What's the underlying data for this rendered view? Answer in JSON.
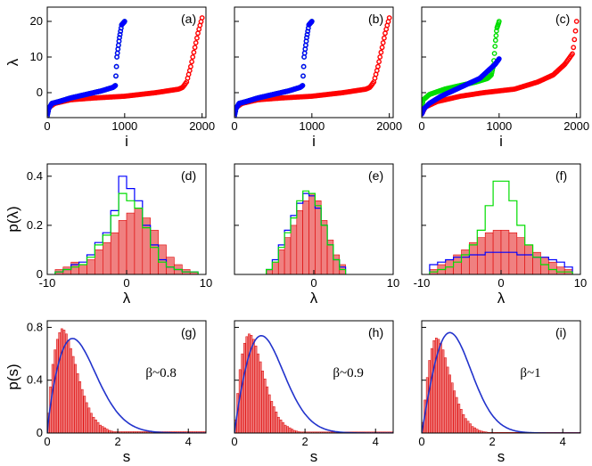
{
  "figure": {
    "description_hidden": false
  },
  "colors": {
    "red": "#ff0000",
    "blue": "#0000ff",
    "green": "#00dd00",
    "bar_fill": "#f08080",
    "bar_edge": "#dd0000",
    "curve": "#2233cc"
  },
  "chart_data": [
    {
      "panel": "(a)",
      "type": "scatter",
      "xlabel": "i",
      "ylabel": "λ",
      "xlim": [
        0,
        2050
      ],
      "ylim": [
        -7,
        24
      ],
      "xticks": [
        "0",
        "1000",
        "2000"
      ],
      "yticks": [
        "0",
        "10",
        "20"
      ],
      "series": [
        {
          "name": "red",
          "color": "#ff0000",
          "n": 2000,
          "x": [
            0,
            30,
            100,
            300,
            600,
            1000,
            1400,
            1700,
            1750,
            1800,
            1850,
            1900,
            1950,
            2000
          ],
          "y": [
            -6,
            -4,
            -3,
            -2,
            -1.5,
            -1,
            0,
            1,
            1.5,
            3,
            7,
            12,
            17,
            21
          ]
        },
        {
          "name": "green",
          "color": "#00dd00",
          "n": 1000,
          "x": [
            0,
            20,
            60,
            150,
            300,
            500,
            700,
            850,
            880,
            900,
            930,
            960,
            1000
          ],
          "y": [
            -6.5,
            -4.5,
            -3,
            -2.5,
            -1.5,
            -0.5,
            0.5,
            1.5,
            2,
            10,
            15,
            19,
            20
          ]
        },
        {
          "name": "blue",
          "color": "#0000ff",
          "n": 1000,
          "x": [
            0,
            20,
            60,
            150,
            300,
            500,
            700,
            850,
            880,
            900,
            930,
            960,
            1000
          ],
          "y": [
            -6.5,
            -4.5,
            -3,
            -2.5,
            -1.5,
            -0.5,
            0.5,
            1.5,
            2,
            10,
            15,
            19,
            20
          ]
        }
      ]
    },
    {
      "panel": "(b)",
      "type": "scatter",
      "xlabel": "i",
      "ylabel": "",
      "xlim": [
        0,
        2050
      ],
      "ylim": [
        -7,
        24
      ],
      "xticks": [
        "0",
        "1000",
        "2000"
      ],
      "yticks": [],
      "series": [
        {
          "name": "red",
          "color": "#ff0000",
          "n": 2000,
          "x": [
            0,
            30,
            100,
            300,
            600,
            1000,
            1400,
            1700,
            1750,
            1800,
            1850,
            1900,
            1950,
            2000
          ],
          "y": [
            -6,
            -4,
            -3,
            -2,
            -1.5,
            -1,
            0,
            1,
            1.5,
            3,
            7,
            12,
            17,
            21
          ]
        },
        {
          "name": "green",
          "color": "#00dd00",
          "n": 1000,
          "x": [
            0,
            20,
            60,
            150,
            300,
            500,
            700,
            850,
            880,
            900,
            930,
            960,
            1000
          ],
          "y": [
            -6.5,
            -4.5,
            -3,
            -2.5,
            -1.5,
            -0.5,
            0.5,
            1.5,
            2,
            10,
            15,
            19,
            20
          ]
        },
        {
          "name": "blue",
          "color": "#0000ff",
          "n": 1000,
          "x": [
            0,
            20,
            60,
            150,
            300,
            500,
            700,
            850,
            880,
            900,
            930,
            960,
            1000
          ],
          "y": [
            -6.5,
            -4.5,
            -3,
            -2.5,
            -1.5,
            -0.5,
            0.5,
            1.5,
            2,
            10,
            15,
            19,
            20
          ]
        }
      ]
    },
    {
      "panel": "(c)",
      "type": "scatter",
      "xlabel": "i",
      "ylabel": "",
      "xlim": [
        0,
        2050
      ],
      "ylim": [
        -7,
        24
      ],
      "xticks": [
        "0",
        "1000",
        "2000"
      ],
      "yticks": [],
      "series": [
        {
          "name": "red",
          "color": "#ff0000",
          "n": 2000,
          "x": [
            0,
            50,
            200,
            500,
            800,
            1000,
            1200,
            1500,
            1700,
            1850,
            1950,
            1980,
            2000
          ],
          "y": [
            -6,
            -4,
            -2.5,
            -1,
            0,
            0.5,
            1,
            3,
            5,
            8,
            11,
            16,
            20
          ]
        },
        {
          "name": "green",
          "color": "#00dd00",
          "n": 1000,
          "x": [
            0,
            20,
            100,
            300,
            500,
            700,
            850,
            900,
            930,
            950,
            970,
            1000
          ],
          "y": [
            -4,
            -2,
            -0.5,
            1,
            2,
            3,
            4,
            5,
            8,
            14,
            18,
            20
          ]
        },
        {
          "name": "blue",
          "color": "#0000ff",
          "n": 1000,
          "x": [
            0,
            30,
            100,
            250,
            400,
            500,
            600,
            750,
            850,
            950,
            1000
          ],
          "y": [
            -6,
            -4.5,
            -3,
            -1,
            0.5,
            1.5,
            2.5,
            4,
            6,
            8,
            9.5
          ]
        }
      ]
    },
    {
      "panel": "(d)",
      "type": "bar",
      "xlabel": "λ",
      "ylabel": "p(λ)",
      "xlim": [
        -10,
        10
      ],
      "ylim": [
        0,
        0.45
      ],
      "xticks": [
        "-10",
        "0",
        "10"
      ],
      "yticks": [
        "0",
        "0.2",
        "0.4"
      ],
      "categories_range": [
        -9,
        9
      ],
      "bars": [
        0.02,
        0.03,
        0.05,
        0.04,
        0.06,
        0.1,
        0.13,
        0.17,
        0.22,
        0.25,
        0.27,
        0.23,
        0.18,
        0.12,
        0.07,
        0.04,
        0.02,
        0.01
      ],
      "series": [
        {
          "name": "blue",
          "color": "#0000ff",
          "values": [
            0.01,
            0.02,
            0.04,
            0.05,
            0.08,
            0.13,
            0.17,
            0.26,
            0.4,
            0.35,
            0.3,
            0.2,
            0.12,
            0.06,
            0.03,
            0.02,
            0.01,
            0.01
          ]
        },
        {
          "name": "green",
          "color": "#00dd00",
          "values": [
            0.01,
            0.02,
            0.03,
            0.04,
            0.07,
            0.12,
            0.16,
            0.24,
            0.33,
            0.3,
            0.27,
            0.19,
            0.11,
            0.05,
            0.03,
            0.02,
            0.01,
            0.01
          ]
        }
      ]
    },
    {
      "panel": "(e)",
      "type": "bar",
      "xlabel": "λ",
      "ylabel": "",
      "xlim": [
        -10,
        10
      ],
      "ylim": [
        0,
        0.45
      ],
      "xticks": [
        "0",
        "10"
      ],
      "yticks": [],
      "categories_range": [
        -6,
        4
      ],
      "bars": [
        0.02,
        0.05,
        0.1,
        0.15,
        0.2,
        0.26,
        0.3,
        0.33,
        0.3,
        0.22,
        0.14,
        0.08,
        0.04
      ],
      "series": [
        {
          "name": "blue",
          "color": "#0000ff",
          "values": [
            0.02,
            0.06,
            0.12,
            0.18,
            0.24,
            0.29,
            0.33,
            0.32,
            0.27,
            0.2,
            0.12,
            0.06,
            0.03
          ]
        },
        {
          "name": "green",
          "color": "#00dd00",
          "values": [
            0.02,
            0.05,
            0.11,
            0.17,
            0.23,
            0.3,
            0.34,
            0.33,
            0.28,
            0.2,
            0.12,
            0.06,
            0.02
          ]
        }
      ]
    },
    {
      "panel": "(f)",
      "type": "bar",
      "xlabel": "λ",
      "ylabel": "",
      "xlim": [
        -10,
        10
      ],
      "ylim": [
        0,
        0.45
      ],
      "xticks": [
        "-10",
        "0",
        "10"
      ],
      "yticks": [],
      "categories_range": [
        -9,
        9
      ],
      "bars": [
        0.02,
        0.04,
        0.06,
        0.08,
        0.1,
        0.13,
        0.15,
        0.17,
        0.18,
        0.18,
        0.17,
        0.15,
        0.12,
        0.09,
        0.07,
        0.05,
        0.03,
        0.02
      ],
      "series": [
        {
          "name": "blue",
          "color": "#0000ff",
          "values": [
            0.04,
            0.05,
            0.06,
            0.07,
            0.07,
            0.08,
            0.08,
            0.09,
            0.09,
            0.09,
            0.09,
            0.08,
            0.08,
            0.07,
            0.07,
            0.06,
            0.05,
            0.03
          ]
        },
        {
          "name": "green",
          "color": "#00dd00",
          "values": [
            0.01,
            0.02,
            0.03,
            0.05,
            0.08,
            0.12,
            0.18,
            0.28,
            0.38,
            0.38,
            0.3,
            0.2,
            0.12,
            0.07,
            0.04,
            0.02,
            0.01,
            0.01
          ]
        }
      ]
    },
    {
      "panel": "(g)",
      "type": "bar",
      "xlabel": "s",
      "ylabel": "p(s)",
      "xlim": [
        0,
        4.5
      ],
      "ylim": [
        0,
        0.85
      ],
      "xticks": [
        "0",
        "2",
        "4"
      ],
      "yticks": [
        "0",
        "0.4",
        "0.8"
      ],
      "annotation": "β~0.8",
      "beta": 0.8,
      "bin_width": 0.06,
      "bars": [
        0.15,
        0.35,
        0.52,
        0.63,
        0.71,
        0.76,
        0.79,
        0.78,
        0.75,
        0.7,
        0.64,
        0.58,
        0.52,
        0.45,
        0.39,
        0.33,
        0.28,
        0.23,
        0.19,
        0.15,
        0.12,
        0.1,
        0.08,
        0.06,
        0.05,
        0.04,
        0.03,
        0.02,
        0.015,
        0.01
      ]
    },
    {
      "panel": "(h)",
      "type": "bar",
      "xlabel": "s",
      "ylabel": "",
      "xlim": [
        0,
        4.5
      ],
      "ylim": [
        0,
        0.85
      ],
      "xticks": [
        "0",
        "2",
        "4"
      ],
      "yticks": [],
      "annotation": "β~0.9",
      "beta": 0.9,
      "bin_width": 0.06,
      "bars": [
        0.1,
        0.3,
        0.48,
        0.6,
        0.68,
        0.73,
        0.75,
        0.74,
        0.71,
        0.66,
        0.6,
        0.54,
        0.47,
        0.41,
        0.35,
        0.29,
        0.24,
        0.2,
        0.16,
        0.12,
        0.1,
        0.08,
        0.06,
        0.05,
        0.04,
        0.03,
        0.02,
        0.015,
        0.01,
        0.008
      ]
    },
    {
      "panel": "(i)",
      "type": "bar",
      "xlabel": "s",
      "ylabel": "",
      "xlim": [
        0,
        4.5
      ],
      "ylim": [
        0,
        0.85
      ],
      "xticks": [
        "0",
        "2",
        "4"
      ],
      "yticks": [],
      "annotation": "β~1",
      "beta": 1.0,
      "bin_width": 0.06,
      "bars": [
        0.08,
        0.25,
        0.42,
        0.55,
        0.64,
        0.7,
        0.72,
        0.71,
        0.68,
        0.63,
        0.57,
        0.5,
        0.44,
        0.38,
        0.32,
        0.27,
        0.22,
        0.18,
        0.14,
        0.11,
        0.09,
        0.07,
        0.05,
        0.04,
        0.03,
        0.02,
        0.015,
        0.01,
        0.008,
        0.005
      ]
    }
  ]
}
